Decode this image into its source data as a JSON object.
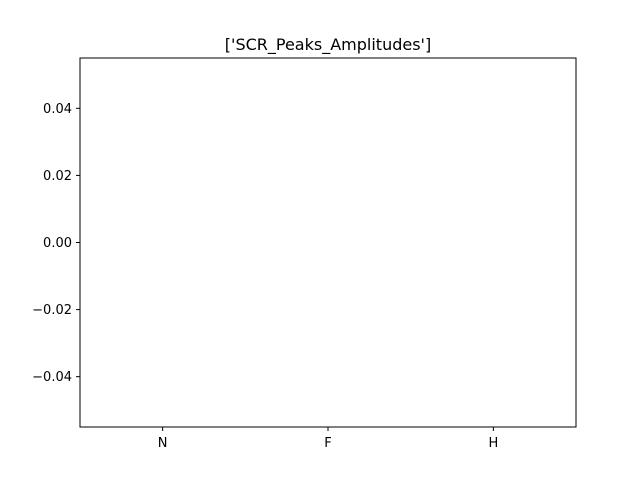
{
  "chart_data": {
    "type": "bar",
    "title": "['SCR_Peaks_Amplitudes']",
    "xlabel": "",
    "ylabel": "",
    "categories": [
      "N",
      "F",
      "H"
    ],
    "series": [
      {
        "values": [
          0,
          0,
          0
        ]
      }
    ],
    "xlim": [
      -0.5,
      2.5
    ],
    "ylim": [
      -0.055,
      0.055
    ],
    "yticks": [
      {
        "value": -0.04,
        "label": "−0.04"
      },
      {
        "value": -0.02,
        "label": "−0.02"
      },
      {
        "value": 0.0,
        "label": "0.00"
      },
      {
        "value": 0.02,
        "label": "0.02"
      },
      {
        "value": 0.04,
        "label": "0.04"
      }
    ],
    "grid": false,
    "legend": false,
    "colors": {
      "frame": "#000000",
      "background": "#ffffff",
      "bar": "#1f77b4"
    }
  }
}
